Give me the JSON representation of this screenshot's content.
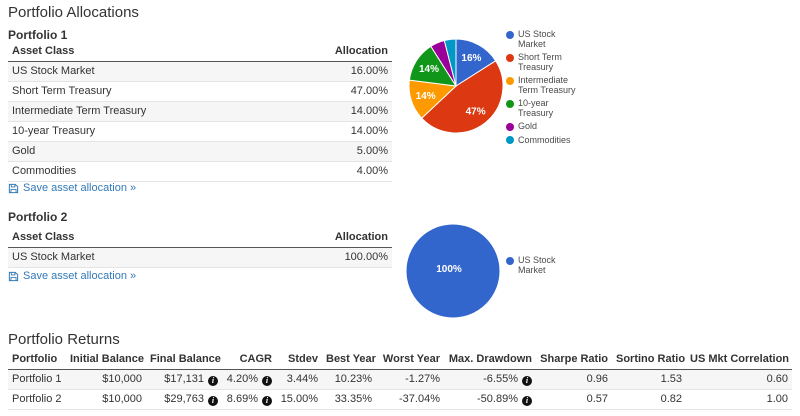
{
  "page": {
    "title": "Portfolio Allocations",
    "returns_title": "Portfolio Returns"
  },
  "colors": {
    "link": "#337ab7",
    "palette": [
      "#3366CC",
      "#DC3912",
      "#FF9900",
      "#109618",
      "#990099",
      "#0099C6"
    ]
  },
  "portfolios": [
    {
      "name": "Portfolio 1",
      "columns": [
        "Asset Class",
        "Allocation"
      ],
      "rows": [
        [
          "US Stock Market",
          "16.00%"
        ],
        [
          "Short Term Treasury",
          "47.00%"
        ],
        [
          "Intermediate Term Treasury",
          "14.00%"
        ],
        [
          "10-year Treasury",
          "14.00%"
        ],
        [
          "Gold",
          "5.00%"
        ],
        [
          "Commodities",
          "4.00%"
        ]
      ],
      "save_label": "Save asset allocation »"
    },
    {
      "name": "Portfolio 2",
      "columns": [
        "Asset Class",
        "Allocation"
      ],
      "rows": [
        [
          "US Stock Market",
          "100.00%"
        ]
      ],
      "save_label": "Save asset allocation »"
    }
  ],
  "chart_data": [
    {
      "type": "pie",
      "title": "Portfolio 1 allocation",
      "labels": [
        "US Stock Market",
        "Short Term Treasury",
        "Intermediate Term Treasury",
        "10-year Treasury",
        "Gold",
        "Commodities"
      ],
      "values": [
        16,
        47,
        14,
        14,
        5,
        4
      ],
      "slice_labels": [
        "16%",
        "47%",
        "14%",
        "14%",
        "",
        ""
      ],
      "colors": [
        "#3366CC",
        "#DC3912",
        "#FF9900",
        "#109618",
        "#990099",
        "#0099C6"
      ],
      "legend_position": "right"
    },
    {
      "type": "pie",
      "title": "Portfolio 2 allocation",
      "labels": [
        "US Stock Market"
      ],
      "values": [
        100
      ],
      "slice_labels": [
        "100%"
      ],
      "colors": [
        "#3366CC"
      ],
      "legend_position": "right"
    }
  ],
  "returns": {
    "columns": [
      "Portfolio",
      "Initial Balance",
      "Final Balance",
      "CAGR",
      "Stdev",
      "Best Year",
      "Worst Year",
      "Max. Drawdown",
      "Sharpe Ratio",
      "Sortino Ratio",
      "US Mkt Correlation"
    ],
    "rows": [
      {
        "cells": [
          "Portfolio 1",
          "$10,000",
          "$17,131",
          "4.20%",
          "3.44%",
          "10.23%",
          "-1.27%",
          "-6.55%",
          "0.96",
          "1.53",
          "0.60"
        ],
        "info_cells": [
          2,
          3,
          7
        ]
      },
      {
        "cells": [
          "Portfolio 2",
          "$10,000",
          "$29,763",
          "8.69%",
          "15.00%",
          "33.35%",
          "-37.04%",
          "-50.89%",
          "0.57",
          "0.82",
          "1.00"
        ],
        "info_cells": [
          2,
          3,
          7
        ]
      }
    ]
  }
}
